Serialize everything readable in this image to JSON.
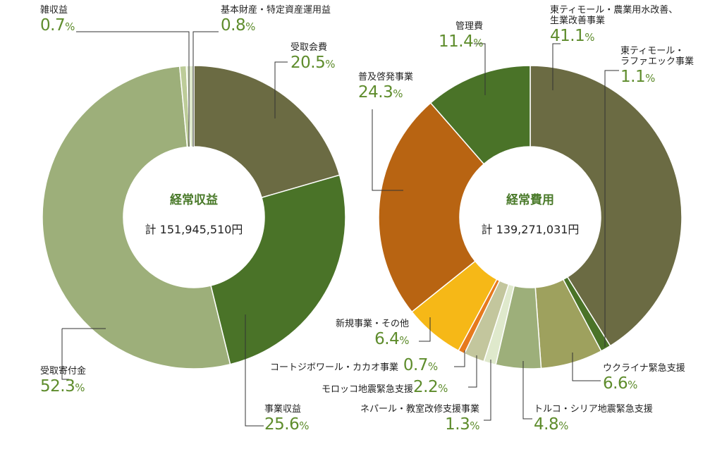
{
  "chart_data": [
    {
      "type": "pie",
      "title": "経常収益",
      "total": "計 151,945,510円",
      "slices": [
        {
          "label": "受取会費",
          "value": 20.5,
          "pct": "20.5",
          "color": "#6b6b43"
        },
        {
          "label": "事業収益",
          "value": 25.6,
          "pct": "25.6",
          "color": "#4a7328"
        },
        {
          "label": "受取寄付金",
          "value": 52.3,
          "pct": "52.3",
          "color": "#9daf7a"
        },
        {
          "label": "雑収益",
          "value": 0.7,
          "pct": "0.7",
          "color": "#bdcc99"
        },
        {
          "label": "基本財産・特定資産運用益",
          "value": 0.8,
          "pct": "0.8",
          "color": "#dfe9cc"
        }
      ]
    },
    {
      "type": "pie",
      "title": "経常費用",
      "total": "計 139,271,031円",
      "slices": [
        {
          "label": "東ティモール・農業用水改善、生業改善事業",
          "label_lines": [
            "東ティモール・農業用水改善、",
            "生業改善事業"
          ],
          "value": 41.1,
          "pct": "41.1",
          "color": "#6b6b43"
        },
        {
          "label": "東ティモール・ラファエック事業",
          "label_lines": [
            "東ティモール・",
            "ラファエック事業"
          ],
          "value": 1.1,
          "pct": "1.1",
          "color": "#4a7328"
        },
        {
          "label": "ウクライナ緊急支援",
          "value": 6.6,
          "pct": "6.6",
          "color": "#9ea15e"
        },
        {
          "label": "トルコ・シリア地震緊急支援",
          "value": 4.8,
          "pct": "4.8",
          "color": "#9daf7a"
        },
        {
          "label": "ネパール・教室改修支援事業",
          "value": 1.3,
          "pct": "1.3",
          "color": "#dfe9cc"
        },
        {
          "label": "モロッコ地震緊急支援",
          "value": 2.2,
          "pct": "2.2",
          "color": "#c3c69d"
        },
        {
          "label": "コートジボワール・カカオ事業",
          "value": 0.7,
          "pct": "0.7",
          "color": "#e67a1e"
        },
        {
          "label": "新規事業・その他",
          "value": 6.4,
          "pct": "6.4",
          "color": "#f6b817"
        },
        {
          "label": "普及啓発事業",
          "value": 24.3,
          "pct": "24.3",
          "color": "#b86412"
        },
        {
          "label": "管理費",
          "value": 11.4,
          "pct": "11.4",
          "color": "#4a7328"
        }
      ]
    }
  ],
  "unit": "%"
}
